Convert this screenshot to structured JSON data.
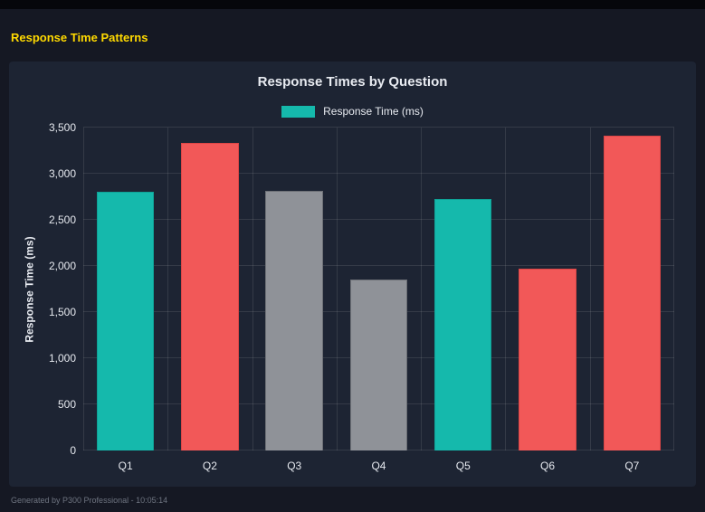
{
  "page": {
    "title": "Response Time Patterns",
    "footer": "Generated by P300 Professional - 10:05:14"
  },
  "chart": {
    "title": "Response Times by Question",
    "legend_label": "Response Time (ms)",
    "y_axis_label": "Response Time (ms)"
  },
  "chart_data": {
    "type": "bar",
    "title": "Response Times by Question",
    "categories": [
      "Q1",
      "Q2",
      "Q3",
      "Q4",
      "Q5",
      "Q6",
      "Q7"
    ],
    "values": [
      2800,
      3330,
      2810,
      1850,
      2730,
      1970,
      3410
    ],
    "bar_color_keys": [
      "teal",
      "red",
      "gray",
      "gray",
      "teal",
      "red",
      "red"
    ],
    "colors": {
      "teal": {
        "fill": "#15b9ac",
        "border": "#0fa296"
      },
      "red": {
        "fill": "#f25858",
        "border": "#de4646"
      },
      "gray": {
        "fill": "#8f9298",
        "border": "#6d7076"
      }
    },
    "xlabel": "",
    "ylabel": "Response Time (ms)",
    "ylim": [
      0,
      3500
    ],
    "yticks": [
      0,
      500,
      1000,
      1500,
      2000,
      2500,
      3000,
      3500
    ],
    "ytick_labels": [
      "0",
      "500",
      "1,000",
      "1,500",
      "2,000",
      "2,500",
      "3,000",
      "3,500"
    ],
    "legend": {
      "label": "Response Time (ms)",
      "position": "top"
    },
    "grid": true,
    "background": "#1d2433",
    "page_background": "#151823",
    "title_accent_color": "#ffd900"
  }
}
